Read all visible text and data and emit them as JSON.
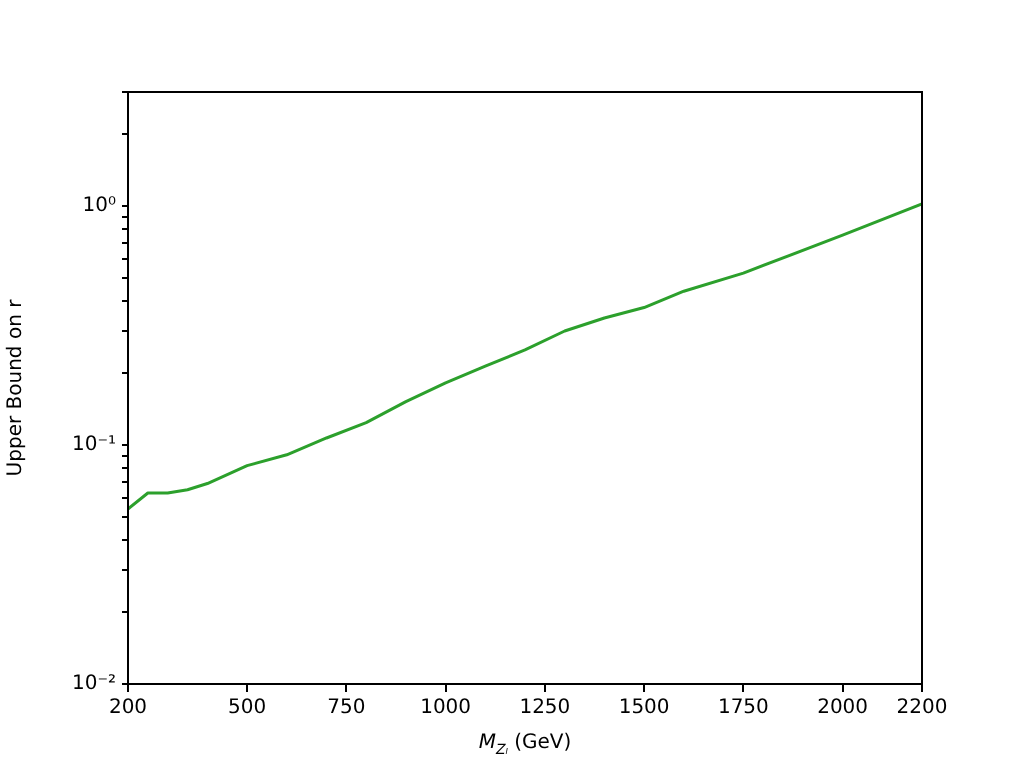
{
  "chart_data": {
    "type": "line",
    "xlabel": "M$_{Zₗ}$ (GeV)",
    "ylabel": "Upper Bound on r",
    "x": [
      200,
      250,
      300,
      350,
      400,
      500,
      600,
      700,
      800,
      900,
      1000,
      1100,
      1200,
      1300,
      1400,
      1500,
      1600,
      1750,
      2000,
      2200
    ],
    "series": [
      {
        "color": "#2ca02c",
        "values": [
          0.054,
          0.063,
          0.063,
          0.065,
          0.069,
          0.082,
          0.091,
          0.107,
          0.124,
          0.152,
          0.182,
          0.214,
          0.25,
          0.3,
          0.34,
          0.376,
          0.44,
          0.524,
          0.755,
          1.02
        ]
      }
    ],
    "log": "y",
    "xlim": [
      200,
      2200
    ],
    "xticks": [
      200,
      500,
      750,
      1000,
      1250,
      1500,
      1750,
      2000,
      2200
    ],
    "ylim": [
      0.01,
      3
    ],
    "yticks": [
      {
        "value": 0.01,
        "label": "10⁻²"
      },
      {
        "value": 0.02,
        "label": null
      },
      {
        "value": 0.03,
        "label": null
      },
      {
        "value": 0.04,
        "label": null
      },
      {
        "value": 0.05,
        "label": null
      },
      {
        "value": 0.06,
        "label": null
      },
      {
        "value": 0.07,
        "label": null
      },
      {
        "value": 0.08,
        "label": null
      },
      {
        "value": 0.09,
        "label": null
      },
      {
        "value": 0.1,
        "label": "10⁻¹"
      },
      {
        "value": 0.2,
        "label": null
      },
      {
        "value": 0.3,
        "label": null
      },
      {
        "value": 0.4,
        "label": null
      },
      {
        "value": 0.5,
        "label": null
      },
      {
        "value": 0.6,
        "label": null
      },
      {
        "value": 0.7,
        "label": null
      },
      {
        "value": 0.8,
        "label": null
      },
      {
        "value": 0.9,
        "label": null
      },
      {
        "value": 1,
        "label": "10⁰"
      },
      {
        "value": 2,
        "label": null
      },
      {
        "value": 3,
        "label": null
      }
    ]
  }
}
